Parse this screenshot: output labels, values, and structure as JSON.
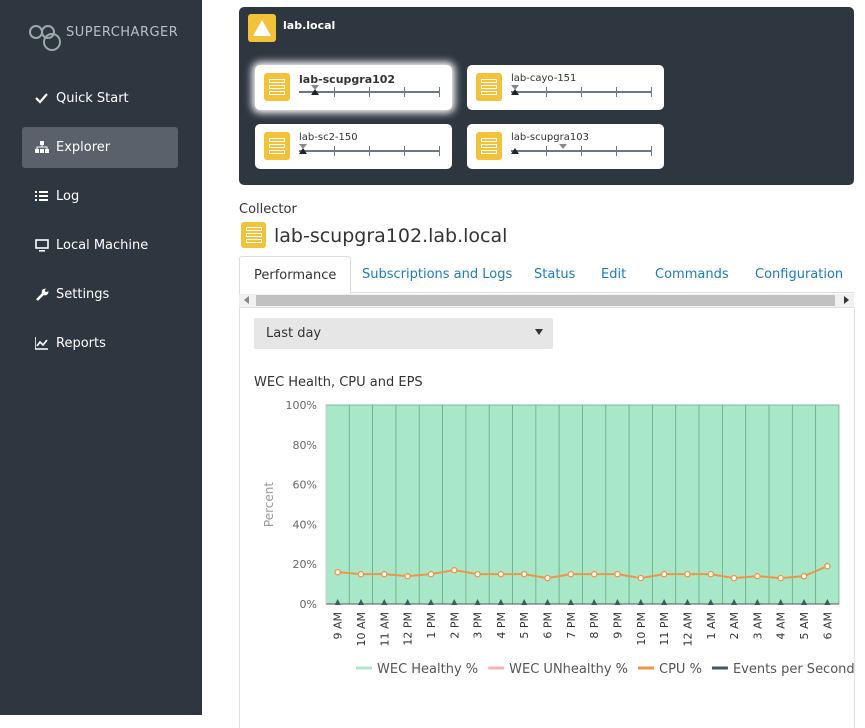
{
  "sidebar": {
    "logo": "SUPERCHARGER",
    "menu": [
      "Quick Start",
      "Explorer",
      "Log",
      "Local Machine",
      "Settings",
      "Reports"
    ]
  },
  "explorer": {
    "domain": "lab.local",
    "collectors": [
      "lab-scupgra102",
      "lab-cayo-151",
      "lab-sc2-150",
      "lab-scupgra103"
    ]
  },
  "collector": {
    "label": "Collector",
    "name": "lab-scupgra102.lab.local"
  },
  "tabs": [
    "Performance",
    "Subscriptions and Logs",
    "Status",
    "Edit",
    "Commands",
    "Configuration"
  ],
  "range_select": "Last day",
  "chart_data": {
    "type": "bar",
    "title": "WEC Health, CPU and EPS",
    "y_label": "Percent",
    "categories": [
      "9 AM",
      "10 AM",
      "11 AM",
      "12 PM",
      "1 PM",
      "2 PM",
      "3 PM",
      "4 PM",
      "5 PM",
      "6 PM",
      "7 PM",
      "8 PM",
      "9 PM",
      "10 PM",
      "11 PM",
      "12 AM",
      "1 AM",
      "2 AM",
      "3 AM",
      "4 AM",
      "5 AM",
      "6 AM"
    ],
    "series": [
      {
        "name": "WEC Healthy %",
        "color": "#a8e8c8",
        "kind": "bar",
        "values": [
          100,
          100,
          100,
          100,
          100,
          100,
          100,
          100,
          100,
          100,
          100,
          100,
          100,
          100,
          100,
          100,
          100,
          100,
          100,
          100,
          100,
          100
        ]
      },
      {
        "name": "WEC UNhealthy %",
        "color": "#f5b5b5",
        "kind": "bar",
        "values": [
          0,
          0,
          0,
          0,
          0,
          0,
          0,
          0,
          0,
          0,
          0,
          0,
          0,
          0,
          0,
          0,
          0,
          0,
          0,
          0,
          0,
          0
        ]
      },
      {
        "name": "CPU %",
        "color": "#f0944a",
        "kind": "line",
        "values": [
          16,
          15,
          15,
          14,
          15,
          17,
          15,
          15,
          15,
          13,
          15,
          15,
          15,
          13,
          15,
          15,
          15,
          13,
          14,
          13,
          14,
          19
        ]
      },
      {
        "name": "Events per Second",
        "color": "#3d5a5e",
        "kind": "marker",
        "values": [
          1,
          1,
          1,
          1,
          1,
          1,
          1,
          1,
          1,
          1,
          1,
          1,
          1,
          1,
          1,
          1,
          1,
          1,
          1,
          1,
          1,
          1
        ]
      }
    ],
    "ylim": [
      0,
      100
    ],
    "yticks": [
      {
        "value": 0,
        "label": "0%"
      },
      {
        "value": 20,
        "label": "20%"
      },
      {
        "value": 40,
        "label": "40%"
      },
      {
        "value": 60,
        "label": "60%"
      },
      {
        "value": 80,
        "label": "80%"
      },
      {
        "value": 100,
        "label": "100%"
      }
    ],
    "grid": true,
    "legend": "bottom"
  }
}
